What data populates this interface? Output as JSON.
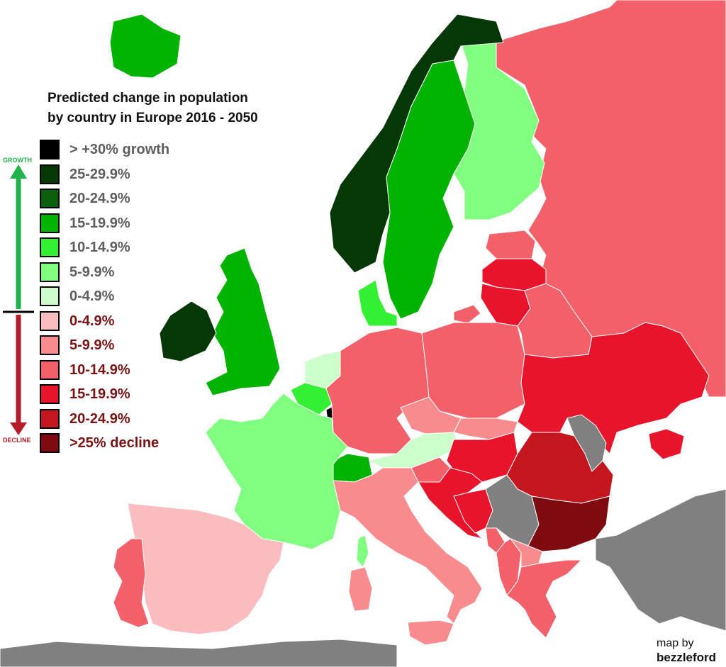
{
  "title": {
    "line1": "Predicted change in population",
    "line2": "by country in Europe 2016 - 2050"
  },
  "axis": {
    "growth_label": "GROWTH",
    "decline_label": "DECLINE",
    "growth_color": "#22b24c",
    "decline_color": "#b51c2b"
  },
  "legend": [
    {
      "label": "> +30% growth",
      "color": "#000000",
      "text_color": "#5e5e5e"
    },
    {
      "label": "25-29.9%",
      "color": "#063706",
      "text_color": "#5e5e5e"
    },
    {
      "label": "20-24.9%",
      "color": "#0b5e0b",
      "text_color": "#5e5e5e"
    },
    {
      "label": "15-19.9%",
      "color": "#00b300",
      "text_color": "#5e5e5e"
    },
    {
      "label": "10-14.9%",
      "color": "#33f033",
      "text_color": "#5e5e5e"
    },
    {
      "label": "5-9.9%",
      "color": "#80ff80",
      "text_color": "#5e5e5e"
    },
    {
      "label": "0-4.9%",
      "color": "#ccffcc",
      "text_color": "#5e5e5e"
    },
    {
      "label": "0-4.9%",
      "color": "#fbbcbf",
      "text_color": "#7a1414"
    },
    {
      "label": "5-9.9%",
      "color": "#f78b8e",
      "text_color": "#7a1414"
    },
    {
      "label": "10-14.9%",
      "color": "#f2616a",
      "text_color": "#7a1414"
    },
    {
      "label": "15-19.9%",
      "color": "#e8142c",
      "text_color": "#7a1414"
    },
    {
      "label": "20-24.9%",
      "color": "#c4161f",
      "text_color": "#7a1414"
    },
    {
      "label": ">25% decline",
      "color": "#7d0b10",
      "text_color": "#7a1414"
    }
  ],
  "no_data_color": "#808080",
  "credit": {
    "by": "map by",
    "author": "bezzleford"
  }
}
